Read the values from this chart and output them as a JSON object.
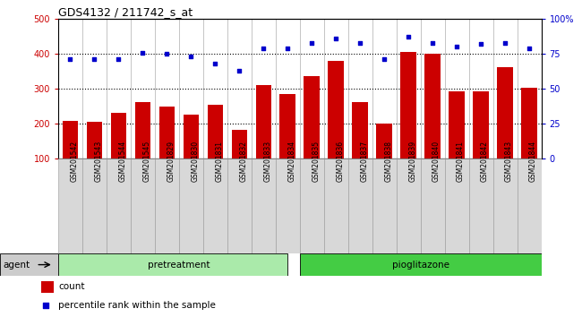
{
  "title": "GDS4132 / 211742_s_at",
  "categories": [
    "GSM201542",
    "GSM201543",
    "GSM201544",
    "GSM201545",
    "GSM201829",
    "GSM201830",
    "GSM201831",
    "GSM201832",
    "GSM201833",
    "GSM201834",
    "GSM201835",
    "GSM201836",
    "GSM201837",
    "GSM201838",
    "GSM201839",
    "GSM201840",
    "GSM201841",
    "GSM201842",
    "GSM201843",
    "GSM201844"
  ],
  "bar_values": [
    207,
    205,
    230,
    263,
    248,
    227,
    255,
    183,
    310,
    285,
    335,
    380,
    263,
    200,
    405,
    400,
    292,
    293,
    362,
    302
  ],
  "dot_values_pct": [
    71,
    71,
    71,
    76,
    75,
    73,
    68,
    63,
    79,
    79,
    83,
    86,
    83,
    71,
    87,
    83,
    80,
    82,
    83,
    79
  ],
  "pretreatment_label": "pretreatment",
  "pioglitazone_label": "pioglitazone",
  "agent_label": "agent",
  "legend_count": "count",
  "legend_pct": "percentile rank within the sample",
  "bar_color": "#cc0000",
  "dot_color": "#0000cc",
  "ylim_left": [
    100,
    500
  ],
  "ylim_right": [
    0,
    100
  ],
  "pretreat_color": "#aaeaaa",
  "pioglit_color": "#44cc44",
  "agent_strip_color": "#cccccc",
  "cell_bg_color": "#d8d8d8"
}
